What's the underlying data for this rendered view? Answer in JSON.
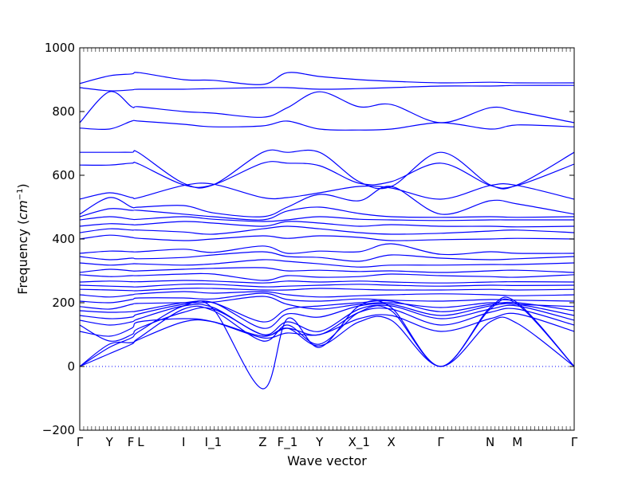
{
  "chart_data": {
    "type": "line",
    "title": "",
    "xlabel": "Wave vector",
    "ylabel_text": "Frequency (",
    "ylabel_unit_base": "cm",
    "ylabel_unit_exp": "−1",
    "ylabel_close": ")",
    "ylim": [
      -200,
      1000
    ],
    "yticks": [
      -200,
      0,
      200,
      400,
      600,
      800,
      1000
    ],
    "ytick_labels": [
      "−200",
      "0",
      "200",
      "400",
      "600",
      "800",
      "1000"
    ],
    "zero_line": "dotted",
    "grid": false,
    "legend": "none",
    "line_color": "#0000ff",
    "k_points": [
      {
        "label": "Γ",
        "x": 0.0
      },
      {
        "label": "Y",
        "x": 0.06
      },
      {
        "label": "F",
        "x": 0.105
      },
      {
        "label": "L",
        "x": 0.12
      },
      {
        "label": "I",
        "x": 0.21
      },
      {
        "label": "I_1",
        "x": 0.27
      },
      {
        "label": "Z",
        "x": 0.37
      },
      {
        "label": "F_1",
        "x": 0.42
      },
      {
        "label": "Y",
        "x": 0.485
      },
      {
        "label": "X_1",
        "x": 0.565
      },
      {
        "label": "X",
        "x": 0.63
      },
      {
        "label": "Γ",
        "x": 0.73
      },
      {
        "label": "N",
        "x": 0.83
      },
      {
        "label": "M",
        "x": 0.885
      },
      {
        "label": "Γ",
        "x": 1.0
      }
    ],
    "x_grid": [
      0,
      0.06,
      0.105,
      0.12,
      0.21,
      0.27,
      0.37,
      0.42,
      0.485,
      0.565,
      0.63,
      0.73,
      0.83,
      0.885,
      1.0
    ],
    "series": [
      {
        "values": [
          888,
          912,
          918,
          922,
          900,
          898,
          885,
          922,
          910,
          900,
          895,
          890,
          892,
          890,
          890
        ]
      },
      {
        "values": [
          875,
          865,
          868,
          870,
          870,
          872,
          875,
          875,
          870,
          872,
          875,
          880,
          880,
          882,
          882
        ]
      },
      {
        "values": [
          765,
          862,
          815,
          815,
          800,
          795,
          782,
          812,
          862,
          815,
          822,
          765,
          812,
          800,
          765
        ]
      },
      {
        "values": [
          748,
          745,
          770,
          770,
          760,
          752,
          755,
          770,
          745,
          742,
          745,
          765,
          745,
          758,
          752
        ]
      },
      {
        "values": [
          672,
          672,
          672,
          670,
          575,
          570,
          672,
          672,
          672,
          580,
          565,
          672,
          570,
          570,
          672
        ]
      },
      {
        "values": [
          632,
          632,
          638,
          635,
          570,
          570,
          638,
          638,
          630,
          575,
          580,
          638,
          568,
          568,
          635
        ]
      },
      {
        "values": [
          525,
          545,
          530,
          530,
          568,
          572,
          530,
          530,
          545,
          565,
          560,
          525,
          568,
          568,
          525
        ]
      },
      {
        "values": [
          478,
          530,
          500,
          500,
          505,
          482,
          470,
          500,
          540,
          520,
          565,
          478,
          520,
          510,
          478
        ]
      },
      {
        "values": [
          470,
          495,
          490,
          490,
          478,
          470,
          460,
          488,
          500,
          480,
          470,
          468,
          470,
          468,
          470
        ]
      },
      {
        "values": [
          460,
          470,
          462,
          462,
          470,
          462,
          455,
          460,
          470,
          462,
          460,
          458,
          460,
          460,
          460
        ]
      },
      {
        "values": [
          440,
          448,
          445,
          445,
          455,
          450,
          440,
          455,
          450,
          440,
          445,
          440,
          440,
          438,
          440
        ]
      },
      {
        "values": [
          420,
          432,
          428,
          428,
          422,
          415,
          432,
          440,
          432,
          420,
          415,
          418,
          425,
          428,
          420
        ]
      },
      {
        "values": [
          400,
          412,
          405,
          402,
          395,
          400,
          410,
          402,
          410,
          405,
          395,
          398,
          400,
          402,
          400
        ]
      },
      {
        "values": [
          355,
          362,
          360,
          360,
          368,
          358,
          378,
          355,
          362,
          360,
          385,
          352,
          360,
          355,
          355
        ]
      },
      {
        "values": [
          345,
          335,
          340,
          338,
          342,
          350,
          360,
          345,
          342,
          330,
          350,
          340,
          335,
          338,
          345
        ]
      },
      {
        "values": [
          325,
          318,
          322,
          322,
          318,
          322,
          335,
          330,
          322,
          312,
          318,
          318,
          320,
          320,
          325
        ]
      },
      {
        "values": [
          295,
          305,
          300,
          300,
          305,
          308,
          310,
          300,
          302,
          298,
          300,
          295,
          300,
          302,
          295
        ]
      },
      {
        "values": [
          288,
          282,
          285,
          285,
          290,
          290,
          270,
          285,
          280,
          282,
          290,
          285,
          282,
          280,
          288
        ]
      },
      {
        "values": [
          265,
          268,
          266,
          266,
          270,
          268,
          262,
          268,
          265,
          268,
          265,
          262,
          265,
          266,
          265
        ]
      },
      {
        "values": [
          255,
          252,
          250,
          250,
          258,
          258,
          250,
          252,
          255,
          258,
          255,
          252,
          255,
          254,
          255
        ]
      },
      {
        "values": [
          242,
          240,
          238,
          238,
          245,
          245,
          240,
          240,
          245,
          242,
          240,
          240,
          242,
          240,
          242
        ]
      },
      {
        "values": [
          225,
          218,
          225,
          228,
          235,
          230,
          235,
          225,
          218,
          222,
          225,
          228,
          225,
          222,
          225
        ]
      },
      {
        "values": [
          205,
          200,
          210,
          215,
          215,
          212,
          230,
          210,
          205,
          212,
          208,
          205,
          210,
          208,
          205
        ]
      },
      {
        "values": [
          188,
          180,
          195,
          198,
          200,
          202,
          220,
          195,
          180,
          195,
          200,
          185,
          200,
          195,
          188
        ]
      },
      {
        "values": [
          175,
          170,
          172,
          175,
          200,
          200,
          140,
          180,
          190,
          200,
          205,
          172,
          195,
          200,
          175
        ]
      },
      {
        "values": [
          160,
          150,
          155,
          165,
          195,
          200,
          120,
          165,
          155,
          190,
          195,
          160,
          190,
          195,
          160
        ]
      },
      {
        "values": [
          145,
          130,
          140,
          150,
          190,
          185,
          100,
          140,
          110,
          180,
          190,
          150,
          180,
          190,
          145
        ]
      },
      {
        "values": [
          130,
          80,
          100,
          120,
          170,
          180,
          100,
          120,
          100,
          170,
          180,
          130,
          170,
          180,
          130
        ]
      },
      {
        "values": [
          110,
          95,
          120,
          140,
          150,
          140,
          90,
          105,
          100,
          150,
          160,
          110,
          150,
          165,
          110
        ]
      },
      {
        "values": [
          0,
          60,
          90,
          110,
          190,
          180,
          -70,
          150,
          60,
          190,
          185,
          0,
          185,
          200,
          0
        ]
      },
      {
        "values": [
          0,
          70,
          75,
          90,
          180,
          175,
          80,
          130,
          70,
          170,
          175,
          0,
          180,
          195,
          0
        ]
      },
      {
        "values": [
          0,
          40,
          70,
          85,
          140,
          140,
          95,
          120,
          65,
          140,
          145,
          0,
          140,
          135,
          0
        ]
      }
    ]
  }
}
